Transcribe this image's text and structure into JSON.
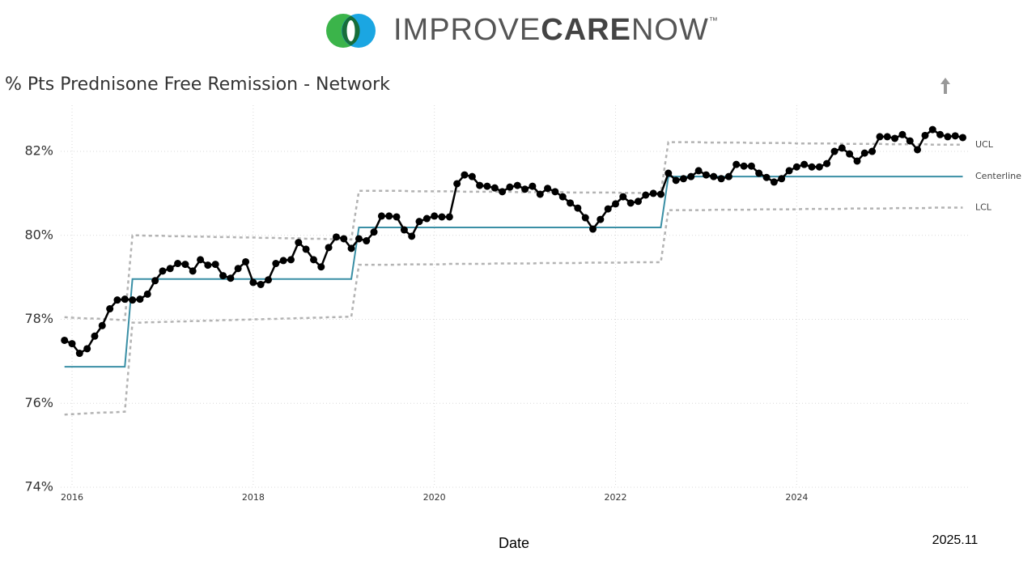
{
  "header": {
    "brand": [
      "IMPROVE",
      "CARE",
      "NOW"
    ],
    "trademark": "™"
  },
  "chart_data": {
    "type": "line",
    "title": "% Pts Prednisone Free Remission - Network",
    "x_label": "Date",
    "annotation": "2025.11",
    "grid": true,
    "xlim": [
      2015.875,
      2025.9
    ],
    "xticks": [
      2016,
      2018,
      2020,
      2022,
      2024
    ],
    "ylim": [
      74,
      83.1
    ],
    "yticks": [
      {
        "value": 74,
        "label": "74%"
      },
      {
        "value": 76,
        "label": "76%"
      },
      {
        "value": 78,
        "label": "78%"
      },
      {
        "value": 80,
        "label": "80%"
      },
      {
        "value": 82,
        "label": "82%"
      }
    ],
    "x": [
      2015.917,
      2016.0,
      2016.083,
      2016.167,
      2016.25,
      2016.333,
      2016.417,
      2016.5,
      2016.583,
      2016.667,
      2016.75,
      2016.833,
      2016.917,
      2017.0,
      2017.083,
      2017.167,
      2017.25,
      2017.333,
      2017.417,
      2017.5,
      2017.583,
      2017.667,
      2017.75,
      2017.833,
      2017.917,
      2018.0,
      2018.083,
      2018.167,
      2018.25,
      2018.333,
      2018.417,
      2018.5,
      2018.583,
      2018.667,
      2018.75,
      2018.833,
      2018.917,
      2019.0,
      2019.083,
      2019.167,
      2019.25,
      2019.333,
      2019.417,
      2019.5,
      2019.583,
      2019.667,
      2019.75,
      2019.833,
      2019.917,
      2020.0,
      2020.083,
      2020.167,
      2020.25,
      2020.333,
      2020.417,
      2020.5,
      2020.583,
      2020.667,
      2020.75,
      2020.833,
      2020.917,
      2021.0,
      2021.083,
      2021.167,
      2021.25,
      2021.333,
      2021.417,
      2021.5,
      2021.583,
      2021.667,
      2021.75,
      2021.833,
      2021.917,
      2022.0,
      2022.083,
      2022.167,
      2022.25,
      2022.333,
      2022.417,
      2022.5,
      2022.583,
      2022.667,
      2022.75,
      2022.833,
      2022.917,
      2023.0,
      2023.083,
      2023.167,
      2023.25,
      2023.333,
      2023.417,
      2023.5,
      2023.583,
      2023.667,
      2023.75,
      2023.833,
      2023.917,
      2024.0,
      2024.083,
      2024.167,
      2024.25,
      2024.333,
      2024.417,
      2024.5,
      2024.583,
      2024.667,
      2024.75,
      2024.833,
      2024.917,
      2025.0,
      2025.083,
      2025.167,
      2025.25,
      2025.333,
      2025.417,
      2025.5,
      2025.583,
      2025.667,
      2025.75,
      2025.833
    ],
    "series": [
      {
        "name": "UCL",
        "color": "#b3b3b3",
        "dashed": true,
        "label_end": true,
        "values": [
          78.05,
          78.04,
          78.03,
          78.02,
          78.02,
          78.01,
          78.0,
          77.99,
          77.98,
          80.0,
          80.0,
          79.99,
          79.99,
          79.99,
          79.98,
          79.98,
          79.98,
          79.97,
          79.97,
          79.97,
          79.96,
          79.96,
          79.96,
          79.95,
          79.95,
          79.95,
          79.94,
          79.94,
          79.94,
          79.93,
          79.93,
          79.93,
          79.92,
          79.92,
          79.92,
          79.91,
          79.91,
          79.91,
          79.9,
          81.06,
          81.06,
          81.06,
          81.06,
          81.06,
          81.06,
          81.06,
          81.05,
          81.05,
          81.05,
          81.05,
          81.05,
          81.05,
          81.05,
          81.04,
          81.04,
          81.04,
          81.04,
          81.04,
          81.04,
          81.04,
          81.03,
          81.03,
          81.03,
          81.03,
          81.03,
          81.03,
          81.03,
          81.02,
          81.02,
          81.02,
          81.02,
          81.02,
          81.02,
          81.02,
          81.01,
          81.01,
          81.01,
          81.01,
          81.01,
          81.01,
          82.22,
          82.22,
          82.22,
          82.22,
          82.22,
          82.21,
          82.21,
          82.21,
          82.21,
          82.21,
          82.21,
          82.2,
          82.2,
          82.2,
          82.2,
          82.2,
          82.2,
          82.19,
          82.19,
          82.19,
          82.19,
          82.19,
          82.19,
          82.18,
          82.18,
          82.18,
          82.18,
          82.18,
          82.18,
          82.17,
          82.17,
          82.17,
          82.17,
          82.17,
          82.17,
          82.16,
          82.16,
          82.16,
          82.16,
          82.16
        ]
      },
      {
        "name": "Centerline",
        "color": "#3a8fa5",
        "dashed": false,
        "label_end": true,
        "values": [
          76.87,
          76.87,
          76.87,
          76.87,
          76.87,
          76.87,
          76.87,
          76.87,
          76.87,
          78.96,
          78.96,
          78.96,
          78.96,
          78.96,
          78.96,
          78.96,
          78.96,
          78.96,
          78.96,
          78.96,
          78.96,
          78.96,
          78.96,
          78.96,
          78.96,
          78.96,
          78.96,
          78.96,
          78.96,
          78.96,
          78.96,
          78.96,
          78.96,
          78.96,
          78.96,
          78.96,
          78.96,
          78.96,
          78.96,
          80.19,
          80.19,
          80.19,
          80.19,
          80.19,
          80.19,
          80.19,
          80.19,
          80.19,
          80.19,
          80.19,
          80.19,
          80.19,
          80.19,
          80.19,
          80.19,
          80.19,
          80.19,
          80.19,
          80.19,
          80.19,
          80.19,
          80.19,
          80.19,
          80.19,
          80.19,
          80.19,
          80.19,
          80.19,
          80.19,
          80.19,
          80.19,
          80.19,
          80.19,
          80.19,
          80.19,
          80.19,
          80.19,
          80.19,
          80.19,
          80.19,
          81.4,
          81.4,
          81.4,
          81.4,
          81.4,
          81.4,
          81.4,
          81.4,
          81.4,
          81.4,
          81.4,
          81.4,
          81.4,
          81.4,
          81.4,
          81.4,
          81.4,
          81.4,
          81.4,
          81.4,
          81.4,
          81.4,
          81.4,
          81.4,
          81.4,
          81.4,
          81.4,
          81.4,
          81.4,
          81.4,
          81.4,
          81.4,
          81.4,
          81.4,
          81.4,
          81.4,
          81.4,
          81.4,
          81.4,
          81.4
        ]
      },
      {
        "name": "LCL",
        "color": "#b3b3b3",
        "dashed": true,
        "label_end": true,
        "values": [
          75.73,
          75.74,
          75.75,
          75.76,
          75.77,
          75.78,
          75.78,
          75.79,
          75.8,
          77.92,
          77.92,
          77.93,
          77.93,
          77.94,
          77.94,
          77.95,
          77.95,
          77.96,
          77.96,
          77.97,
          77.97,
          77.98,
          77.98,
          77.99,
          77.99,
          78.0,
          78.0,
          78.01,
          78.01,
          78.02,
          78.02,
          78.03,
          78.03,
          78.04,
          78.04,
          78.05,
          78.05,
          78.06,
          78.06,
          79.3,
          79.3,
          79.3,
          79.3,
          79.3,
          79.3,
          79.31,
          79.31,
          79.31,
          79.31,
          79.31,
          79.31,
          79.32,
          79.32,
          79.32,
          79.32,
          79.32,
          79.32,
          79.33,
          79.33,
          79.33,
          79.33,
          79.33,
          79.33,
          79.34,
          79.34,
          79.34,
          79.34,
          79.34,
          79.34,
          79.35,
          79.35,
          79.35,
          79.35,
          79.35,
          79.35,
          79.36,
          79.36,
          79.36,
          79.36,
          79.36,
          80.6,
          80.6,
          80.6,
          80.6,
          80.6,
          80.6,
          80.61,
          80.61,
          80.61,
          80.61,
          80.61,
          80.61,
          80.62,
          80.62,
          80.62,
          80.62,
          80.62,
          80.62,
          80.63,
          80.63,
          80.63,
          80.63,
          80.63,
          80.63,
          80.64,
          80.64,
          80.64,
          80.64,
          80.64,
          80.64,
          80.65,
          80.65,
          80.65,
          80.65,
          80.65,
          80.66,
          80.66,
          80.66,
          80.66,
          80.66
        ]
      },
      {
        "name": "% Pts Prednisone Free Remission",
        "color": "#000000",
        "dashed": false,
        "markers": true,
        "label_end": false,
        "values": [
          77.5,
          77.42,
          77.19,
          77.3,
          77.6,
          77.85,
          78.25,
          78.46,
          78.48,
          78.46,
          78.48,
          78.6,
          78.92,
          79.15,
          79.21,
          79.33,
          79.31,
          79.15,
          79.42,
          79.29,
          79.31,
          79.04,
          78.98,
          79.21,
          79.37,
          78.88,
          78.83,
          78.94,
          79.33,
          79.4,
          79.42,
          79.83,
          79.67,
          79.42,
          79.25,
          79.71,
          79.96,
          79.92,
          79.69,
          79.92,
          79.87,
          80.08,
          80.46,
          80.46,
          80.44,
          80.13,
          79.98,
          80.33,
          80.4,
          80.46,
          80.44,
          80.44,
          81.23,
          81.44,
          81.4,
          81.19,
          81.17,
          81.13,
          81.04,
          81.15,
          81.19,
          81.1,
          81.17,
          80.98,
          81.12,
          81.04,
          80.92,
          80.77,
          80.65,
          80.42,
          80.15,
          80.38,
          80.63,
          80.75,
          80.92,
          80.77,
          80.81,
          80.96,
          81.0,
          80.98,
          81.48,
          81.31,
          81.35,
          81.4,
          81.54,
          81.44,
          81.4,
          81.35,
          81.4,
          81.69,
          81.65,
          81.65,
          81.48,
          81.38,
          81.27,
          81.35,
          81.54,
          81.63,
          81.69,
          81.63,
          81.63,
          81.71,
          82.0,
          82.08,
          81.94,
          81.77,
          81.96,
          82.0,
          82.35,
          82.35,
          82.31,
          82.4,
          82.25,
          82.04,
          82.38,
          82.52,
          82.4,
          82.35,
          82.37,
          82.33
        ]
      }
    ]
  }
}
